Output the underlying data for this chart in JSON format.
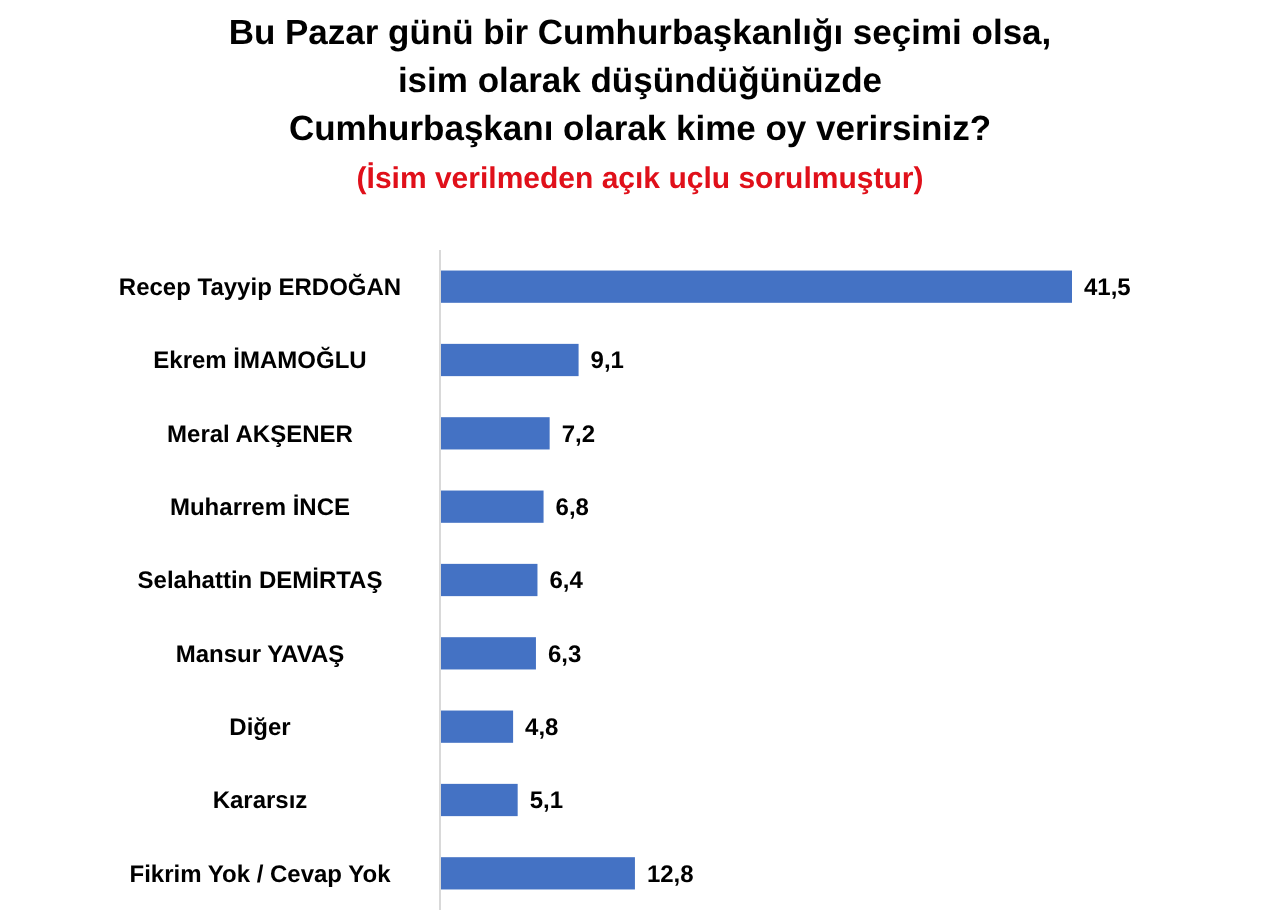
{
  "chart_data": {
    "type": "bar",
    "orientation": "horizontal",
    "title": "Bu Pazar günü bir Cumhurbaşkanlığı seçimi olsa,\nisim olarak düşündüğünüzde\nCumhurbaşkanı olarak kime oy verirsiniz?",
    "subtitle": "(İsim verilmeden açık uçlu sorulmuştur)",
    "categories": [
      "Recep Tayyip ERDOĞAN",
      "Ekrem İMAMOĞLU",
      "Meral AKŞENER",
      "Muharrem İNCE",
      "Selahattin DEMİRTAŞ",
      "Mansur YAVAŞ",
      "Diğer",
      "Kararsız",
      "Fikrim Yok / Cevap Yok"
    ],
    "values": [
      41.5,
      9.1,
      7.2,
      6.8,
      6.4,
      6.3,
      4.8,
      5.1,
      12.8
    ],
    "value_labels": [
      "41,5",
      "9,1",
      "7,2",
      "6,8",
      "6,4",
      "6,3",
      "4,8",
      "5,1",
      "12,8"
    ],
    "color": "#4472c4"
  }
}
